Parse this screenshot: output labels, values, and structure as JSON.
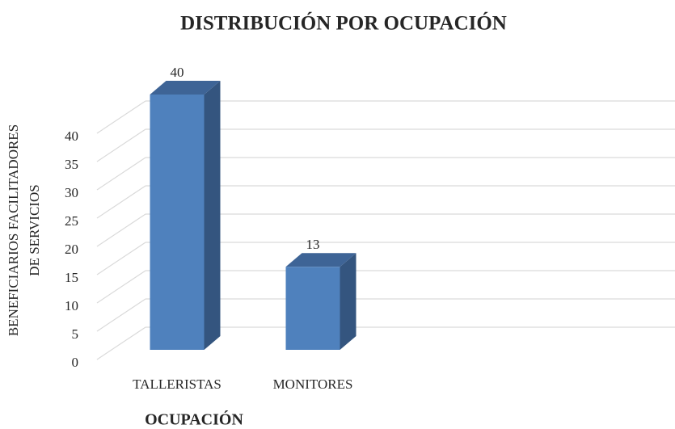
{
  "chart_data": {
    "type": "bar3d",
    "title": "DISTRIBUCIÓN POR OCUPACIÓN",
    "x_label": "OCUPACIÓN",
    "y_label": [
      "BENEFICIARIOS FACILITADORES",
      "DE  SERVICIOS"
    ],
    "categories": [
      "TALLERISTAS",
      "MONITORES"
    ],
    "values": [
      40,
      13
    ],
    "color": "#4f81bd",
    "ylim": [
      0,
      40
    ],
    "yticks": [
      0,
      5,
      10,
      15,
      20,
      25,
      30,
      35,
      40
    ],
    "grid": true
  }
}
